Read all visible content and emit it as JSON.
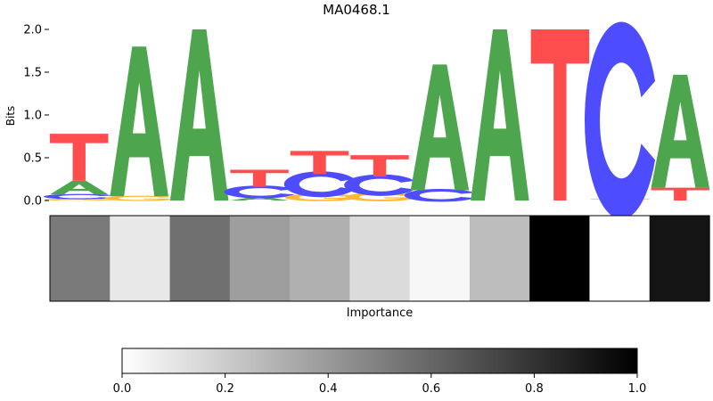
{
  "chart_data": [
    {
      "type": "sequence-logo",
      "title": "MA0468.1",
      "ylabel": "Bits",
      "ylim": [
        0,
        2.0
      ],
      "yticks": [
        0.0,
        0.5,
        1.0,
        1.5,
        2.0
      ],
      "ytick_labels": [
        "0.0",
        "0.5",
        "1.0",
        "1.5",
        "2.0"
      ],
      "letter_colors": {
        "A": "#4da64d",
        "C": "#4d4dff",
        "G": "#ffb733",
        "T": "#ff4d4d"
      },
      "positions": [
        {
          "position": 1,
          "stack": [
            {
              "base": "G",
              "bits": 0.02
            },
            {
              "base": "C",
              "bits": 0.05
            },
            {
              "base": "A",
              "bits": 0.16
            },
            {
              "base": "T",
              "bits": 0.55
            }
          ]
        },
        {
          "position": 2,
          "stack": [
            {
              "base": "G",
              "bits": 0.05
            },
            {
              "base": "A",
              "bits": 1.75
            }
          ]
        },
        {
          "position": 3,
          "stack": [
            {
              "base": "A",
              "bits": 2.0
            }
          ]
        },
        {
          "position": 4,
          "stack": [
            {
              "base": "A",
              "bits": 0.04
            },
            {
              "base": "C",
              "bits": 0.12
            },
            {
              "base": "T",
              "bits": 0.2
            }
          ]
        },
        {
          "position": 5,
          "stack": [
            {
              "base": "G",
              "bits": 0.07
            },
            {
              "base": "C",
              "bits": 0.24
            },
            {
              "base": "T",
              "bits": 0.27
            }
          ]
        },
        {
          "position": 6,
          "stack": [
            {
              "base": "G",
              "bits": 0.08
            },
            {
              "base": "C",
              "bits": 0.2
            },
            {
              "base": "T",
              "bits": 0.25
            }
          ]
        },
        {
          "position": 7,
          "stack": [
            {
              "base": "C",
              "bits": 0.12
            },
            {
              "base": "A",
              "bits": 1.47
            }
          ]
        },
        {
          "position": 8,
          "stack": [
            {
              "base": "A",
              "bits": 2.0
            }
          ]
        },
        {
          "position": 9,
          "stack": [
            {
              "base": "T",
              "bits": 2.0
            }
          ]
        },
        {
          "position": 10,
          "stack": [
            {
              "base": "T",
              "bits": 0.02
            },
            {
              "base": "C",
              "bits": 1.83
            }
          ]
        },
        {
          "position": 11,
          "stack": [
            {
              "base": "T",
              "bits": 0.15
            },
            {
              "base": "A",
              "bits": 1.32
            }
          ]
        }
      ]
    },
    {
      "type": "heatmap",
      "xlabel": "Importance",
      "values": [
        0.52,
        0.09,
        0.56,
        0.38,
        0.31,
        0.14,
        0.03,
        0.26,
        1.0,
        0.0,
        0.92
      ]
    },
    {
      "type": "colorbar",
      "range": [
        0.0,
        1.0
      ],
      "ticks": [
        0.0,
        0.2,
        0.4,
        0.6,
        0.8,
        1.0
      ],
      "tick_labels": [
        "0.0",
        "0.2",
        "0.4",
        "0.6",
        "0.8",
        "1.0"
      ],
      "colormap": "gray_r"
    }
  ]
}
